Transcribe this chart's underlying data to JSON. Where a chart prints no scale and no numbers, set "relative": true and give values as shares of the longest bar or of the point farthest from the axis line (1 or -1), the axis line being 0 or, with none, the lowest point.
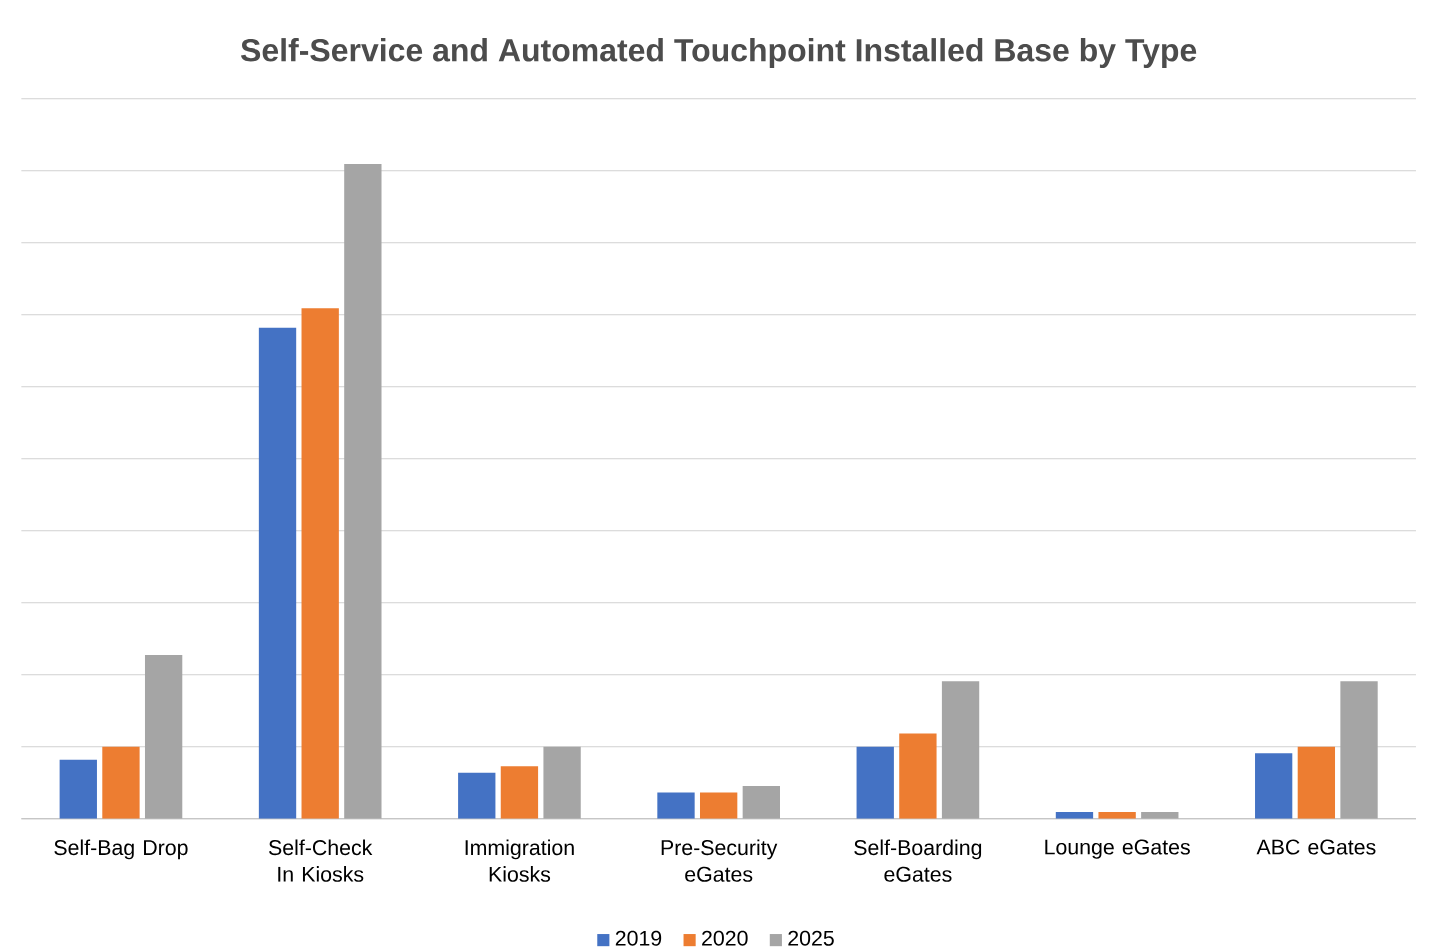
{
  "chart_data": {
    "type": "bar",
    "title": "Self-Service and Automated Touchpoint Installed Base by Type",
    "categories": [
      "Self-Bag Drop",
      "Self-Check In Kiosks",
      "Immigration Kiosks",
      "Pre-Security eGates",
      "Self-Boarding eGates",
      "Lounge eGates",
      "ABC eGates"
    ],
    "series": [
      {
        "name": "2019",
        "color": "#4472c4",
        "values": [
          0.09,
          0.75,
          0.07,
          0.04,
          0.11,
          0.01,
          0.1
        ]
      },
      {
        "name": "2020",
        "color": "#ed7d31",
        "values": [
          0.11,
          0.78,
          0.08,
          0.04,
          0.13,
          0.01,
          0.11
        ]
      },
      {
        "name": "2025",
        "color": "#a5a5a5",
        "values": [
          0.25,
          1,
          0.11,
          0.05,
          0.21,
          0.01,
          0.21
        ]
      }
    ],
    "relative": true,
    "grid": "y",
    "legend": "bottom"
  }
}
